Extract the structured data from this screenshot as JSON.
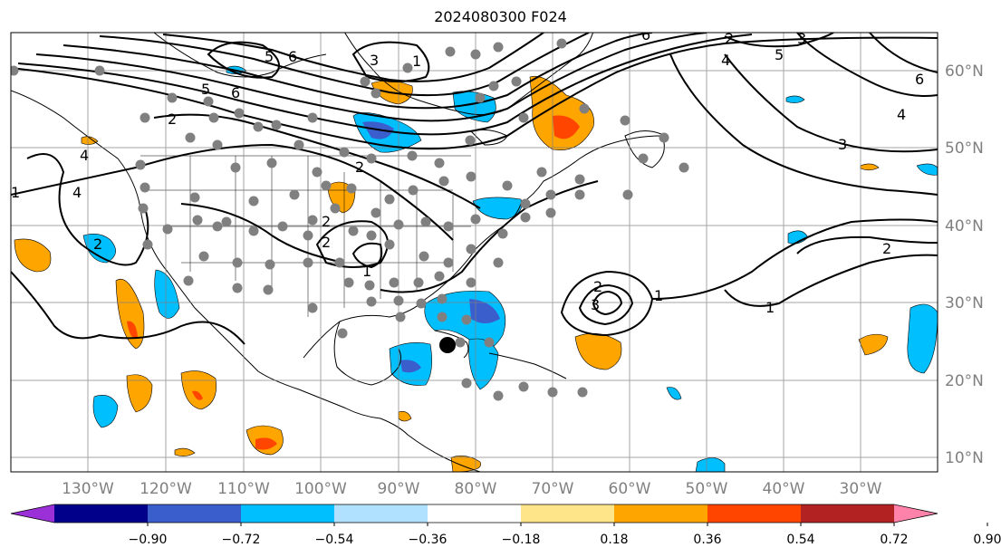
{
  "title": "2024080300 F024",
  "longitude_labels": [
    "130°W",
    "120°W",
    "110°W",
    "100°W",
    "90°W",
    "80°W",
    "70°W",
    "60°W",
    "50°W",
    "40°W",
    "30°W"
  ],
  "latitude_labels": [
    "60°N",
    "50°N",
    "40°N",
    "30°N",
    "20°N",
    "10°N"
  ],
  "colorbar": {
    "tick_labels": [
      "−0.90",
      "−0.72",
      "−0.54",
      "−0.36",
      "−0.18",
      "0.18",
      "0.36",
      "0.54",
      "0.72",
      "0.90"
    ],
    "colors": [
      "#9b30d9",
      "#00008b",
      "#3a5fcd",
      "#00bfff",
      "#b0e2ff",
      "#ffffff",
      "#ffe58a",
      "#ffa500",
      "#ff4500",
      "#b22222",
      "#ff82ab"
    ]
  },
  "contour_labels": [
    "1",
    "2",
    "3",
    "4",
    "5",
    "6"
  ],
  "markers": {
    "station_color": "#808080",
    "storm_center_color": "#000000"
  }
}
